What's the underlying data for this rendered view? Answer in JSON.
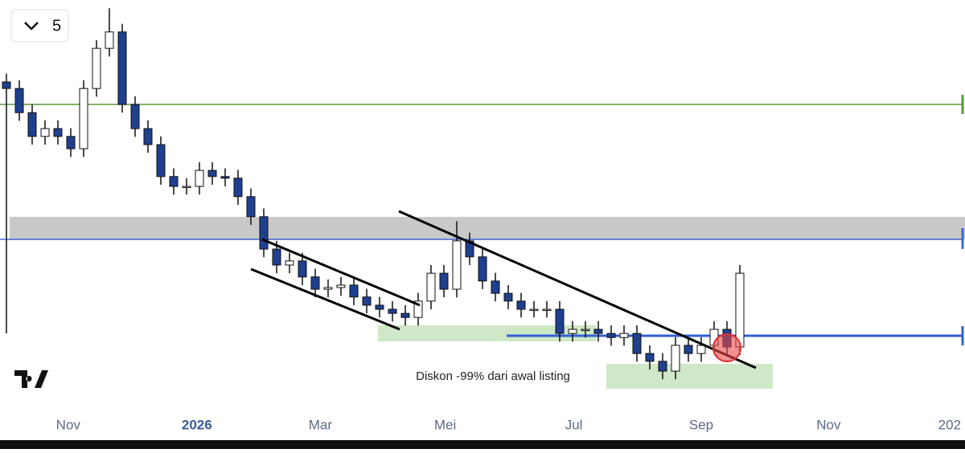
{
  "button_label": "5",
  "chart_data": {
    "type": "candlestick",
    "categories": [
      null,
      null,
      null,
      null,
      null,
      null,
      null,
      null,
      null,
      null,
      null,
      null,
      null,
      null,
      null,
      null,
      null,
      null,
      null,
      null,
      null,
      null,
      null,
      null,
      null,
      null,
      null,
      null,
      null,
      null,
      null,
      null,
      null,
      null,
      null,
      null,
      null,
      null,
      null,
      null,
      null,
      null,
      null,
      null,
      null,
      null,
      null,
      null,
      null,
      null,
      null,
      null,
      null,
      null,
      null,
      null,
      null,
      null
    ],
    "open": [
      80,
      78.4,
      72.5,
      66.7,
      68.6,
      66.7,
      63.7,
      78.4,
      88.2,
      92.2,
      74.5,
      68.6,
      64.7,
      56.9,
      54.5,
      54.5,
      58.4,
      56.9,
      56.5,
      52,
      47.1,
      39.2,
      35.3,
      36.3,
      32.4,
      29.4,
      29.8,
      30.4,
      27.5,
      25.5,
      24.5,
      23.5,
      22.5,
      26.5,
      33.3,
      29.4,
      41.2,
      37.3,
      31.4,
      28.4,
      26.5,
      24.5,
      24.5,
      24.5,
      18.6,
      19.6,
      19.6,
      18.6,
      17.6,
      18.6,
      13.7,
      11.8,
      9.4,
      15.7,
      13.7,
      15.7,
      19.6,
      15.3
    ],
    "high": [
      82,
      80.4,
      74.5,
      70.6,
      70.6,
      68.7,
      80.4,
      90.2,
      98,
      94.2,
      76.5,
      70.6,
      66.7,
      58.9,
      56.5,
      60.4,
      60.4,
      58.9,
      58.5,
      54,
      49.1,
      41.2,
      38.3,
      38.3,
      34.4,
      31.8,
      32.4,
      32.4,
      29.5,
      27.5,
      26.5,
      25.5,
      28.5,
      35.3,
      35.3,
      46,
      43.2,
      39.3,
      33.4,
      30.4,
      28.5,
      26.5,
      26.5,
      26.5,
      21.6,
      21.6,
      21.6,
      20.6,
      20.6,
      20.6,
      15.7,
      13.8,
      17.7,
      17.7,
      17.7,
      21.6,
      21.6,
      35.3
    ],
    "low": [
      18.6,
      70.5,
      64.7,
      64.7,
      64.7,
      61.7,
      61.7,
      76.4,
      86.2,
      72.5,
      66.6,
      62.7,
      54.9,
      52.5,
      52.5,
      52.5,
      54.9,
      54.5,
      50,
      45.1,
      37.2,
      33.3,
      33.3,
      30.4,
      27.4,
      27.4,
      27.8,
      25.5,
      23.5,
      22.5,
      21.5,
      20.5,
      20.5,
      24.5,
      27.4,
      27.4,
      35.3,
      29.4,
      26.4,
      24.5,
      22.5,
      22.5,
      22.5,
      16.6,
      16.6,
      17.6,
      16.6,
      15.6,
      15.6,
      11.7,
      9.8,
      7.4,
      7.4,
      11.7,
      11.7,
      13.7,
      13.3,
      13.3
    ],
    "close": [
      78.4,
      72.5,
      66.7,
      68.6,
      66.7,
      63.7,
      78.4,
      88.2,
      92.2,
      74.5,
      68.6,
      64.7,
      56.9,
      54.5,
      54.5,
      58.4,
      56.9,
      56.5,
      52,
      47.1,
      39.2,
      35.3,
      36.3,
      32.4,
      29.4,
      29.8,
      30.4,
      27.5,
      25.5,
      24.5,
      23.5,
      22.5,
      26.5,
      33.3,
      29.4,
      41.2,
      37.3,
      31.4,
      28.4,
      26.5,
      24.5,
      24.5,
      24.5,
      18.6,
      19.6,
      19.6,
      18.6,
      17.6,
      18.6,
      13.7,
      11.8,
      9.4,
      15.7,
      13.7,
      15.7,
      19.6,
      15.3,
      33.3
    ],
    "up_color": "#ffffff",
    "down_color": "#1f3f8f",
    "wick_color": "#111111",
    "xlim": [
      -0.5,
      74.5
    ],
    "ylim": [
      0,
      100
    ],
    "xticks": [
      {
        "value": 4.8,
        "label": "Nov"
      },
      {
        "value": 14.8,
        "label": "2026"
      },
      {
        "value": 24.4,
        "label": "Mar"
      },
      {
        "value": 34.1,
        "label": "Mei"
      },
      {
        "value": 44.1,
        "label": "Jul"
      },
      {
        "value": 54,
        "label": "Sep"
      },
      {
        "value": 63.9,
        "label": "Nov"
      },
      {
        "value": 73.3,
        "label": "202"
      }
    ],
    "annotations": [
      "Diskon -99% dari awal listing"
    ]
  }
}
